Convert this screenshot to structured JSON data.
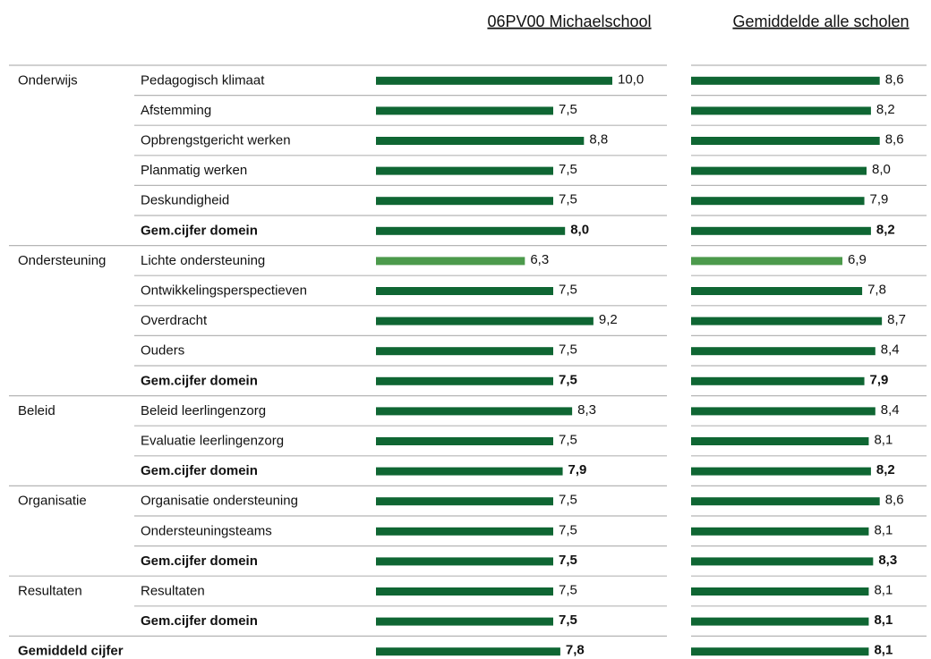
{
  "chart_data": {
    "type": "bar",
    "domains": [
      "Onderwijs",
      null,
      null,
      null,
      null,
      null,
      "Ondersteuning",
      null,
      null,
      null,
      null,
      "Beleid",
      null,
      null,
      "Organisatie",
      null,
      null,
      "Resultaten",
      null,
      "Gemiddeld cijfer"
    ],
    "categories": [
      "Pedagogisch klimaat",
      "Afstemming",
      "Opbrengstgericht werken",
      "Planmatig werken",
      "Deskundigheid",
      "Gem.cijfer domein",
      "Lichte ondersteuning",
      "Ontwikkelingsperspectieven",
      "Overdracht",
      "Ouders",
      "Gem.cijfer domein",
      "Beleid leerlingenzorg",
      "Evaluatie leerlingenzorg",
      "Gem.cijfer domein",
      "Organisatie ondersteuning",
      "Ondersteuningsteams",
      "Gem.cijfer domein",
      "Resultaten",
      "Gem.cijfer domein",
      null
    ],
    "bold": [
      false,
      false,
      false,
      false,
      false,
      true,
      false,
      false,
      false,
      false,
      true,
      false,
      false,
      true,
      false,
      false,
      true,
      false,
      true,
      true
    ],
    "xlim": [
      0,
      10
    ],
    "series": [
      {
        "name": "06PV00 Michaelschool",
        "values": [
          10.0,
          7.5,
          8.8,
          7.5,
          7.5,
          8.0,
          6.3,
          7.5,
          9.2,
          7.5,
          7.5,
          8.3,
          7.5,
          7.9,
          7.5,
          7.5,
          7.5,
          7.5,
          7.5,
          7.8
        ],
        "value_labels": [
          "10,0",
          "7,5",
          "8,8",
          "7,5",
          "7,5",
          "8,0",
          "6,3",
          "7,5",
          "9,2",
          "7,5",
          "7,5",
          "8,3",
          "7,5",
          "7,9",
          "7,5",
          "7,5",
          "7,5",
          "7,5",
          "7,5",
          "7,8"
        ],
        "colors": [
          "#0f6633",
          "#0f6633",
          "#0f6633",
          "#0f6633",
          "#0f6633",
          "#0f6633",
          "#4c9a4c",
          "#0f6633",
          "#0f6633",
          "#0f6633",
          "#0f6633",
          "#0f6633",
          "#0f6633",
          "#0f6633",
          "#0f6633",
          "#0f6633",
          "#0f6633",
          "#0f6633",
          "#0f6633",
          "#0f6633"
        ]
      },
      {
        "name": "Gemiddelde alle scholen",
        "values": [
          8.6,
          8.2,
          8.6,
          8.0,
          7.9,
          8.2,
          6.9,
          7.8,
          8.7,
          8.4,
          7.9,
          8.4,
          8.1,
          8.2,
          8.6,
          8.1,
          8.3,
          8.1,
          8.1,
          8.1
        ],
        "value_labels": [
          "8,6",
          "8,2",
          "8,6",
          "8,0",
          "7,9",
          "8,2",
          "6,9",
          "7,8",
          "8,7",
          "8,4",
          "7,9",
          "8,4",
          "8,1",
          "8,2",
          "8,6",
          "8,1",
          "8,3",
          "8,1",
          "8,1",
          "8,1"
        ],
        "colors": [
          "#0f6633",
          "#0f6633",
          "#0f6633",
          "#0f6633",
          "#0f6633",
          "#0f6633",
          "#4c9a4c",
          "#0f6633",
          "#0f6633",
          "#0f6633",
          "#0f6633",
          "#0f6633",
          "#0f6633",
          "#0f6633",
          "#0f6633",
          "#0f6633",
          "#0f6633",
          "#0f6633",
          "#0f6633",
          "#0f6633"
        ]
      }
    ]
  }
}
